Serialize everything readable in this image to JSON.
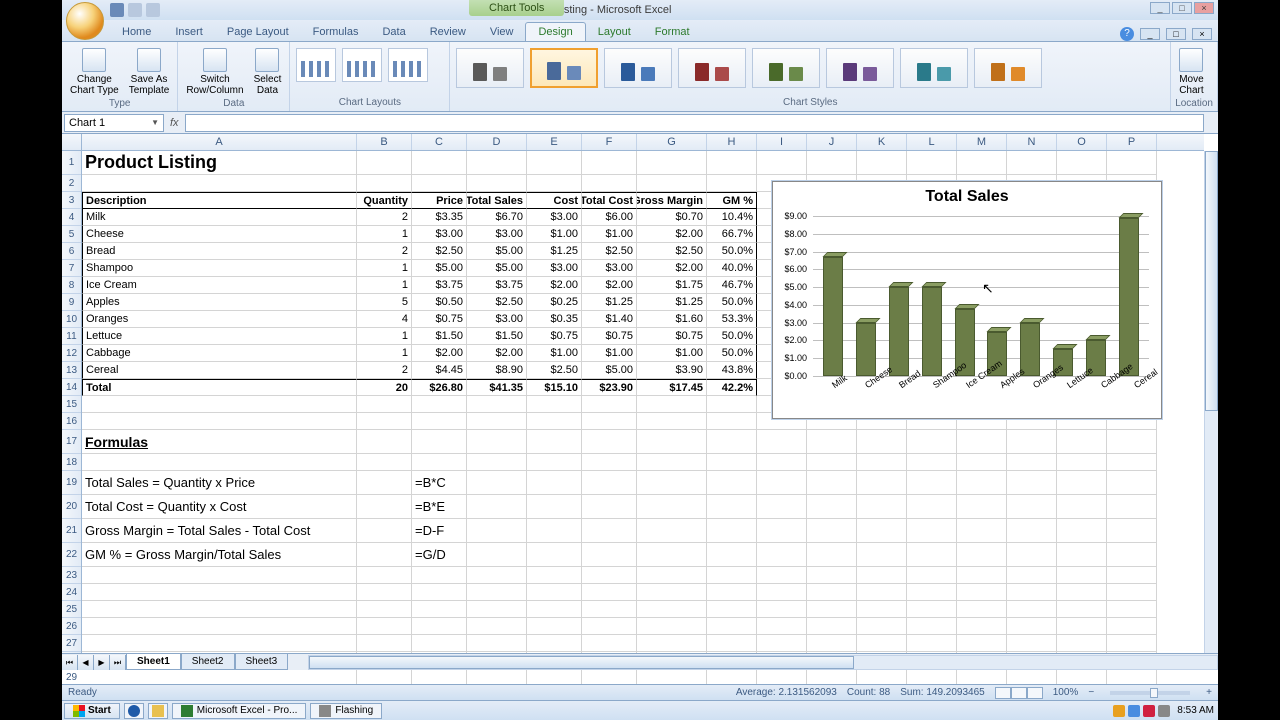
{
  "window": {
    "title": "Product Listing - Microsoft Excel",
    "chart_tools_label": "Chart Tools"
  },
  "win_controls": {
    "min": "_",
    "max": "□",
    "close": "×"
  },
  "tabs": {
    "home": "Home",
    "insert": "Insert",
    "page_layout": "Page Layout",
    "formulas": "Formulas",
    "data": "Data",
    "review": "Review",
    "view": "View",
    "design": "Design",
    "layout": "Layout",
    "format": "Format"
  },
  "ribbon": {
    "type_group": "Type",
    "change_chart_type": "Change\nChart Type",
    "save_as_template": "Save As\nTemplate",
    "data_group": "Data",
    "switch_row_col": "Switch\nRow/Column",
    "select_data": "Select\nData",
    "chart_layouts": "Chart Layouts",
    "chart_styles": "Chart Styles",
    "location_group": "Location",
    "move_chart": "Move\nChart",
    "style_colors": [
      [
        "#595959",
        "#7f7f7f"
      ],
      [
        "#4a6a9a",
        "#6a8aba"
      ],
      [
        "#2a5a9a",
        "#4a7aba"
      ],
      [
        "#8a2a2a",
        "#aa4a4a"
      ],
      [
        "#4a6a2a",
        "#6a8a4a"
      ],
      [
        "#5a3a7a",
        "#7a5a9a"
      ],
      [
        "#2a7a8a",
        "#4a9aaa"
      ],
      [
        "#c0701a",
        "#e08a2a"
      ]
    ]
  },
  "name_box": "Chart 1",
  "columns": [
    "A",
    "B",
    "C",
    "D",
    "E",
    "F",
    "G",
    "H",
    "I",
    "J",
    "K",
    "L",
    "M",
    "N",
    "O",
    "P"
  ],
  "sheet": {
    "title": "Product Listing",
    "headers": [
      "Description",
      "Quantity",
      "Price",
      "Total Sales",
      "Cost",
      "Total Cost",
      "Gross Margin",
      "GM %"
    ],
    "rows": [
      {
        "desc": "Milk",
        "qty": "2",
        "price": "$3.35",
        "ts": "$6.70",
        "cost": "$3.00",
        "tc": "$6.00",
        "gm": "$0.70",
        "gmp": "10.4%"
      },
      {
        "desc": "Cheese",
        "qty": "1",
        "price": "$3.00",
        "ts": "$3.00",
        "cost": "$1.00",
        "tc": "$1.00",
        "gm": "$2.00",
        "gmp": "66.7%"
      },
      {
        "desc": "Bread",
        "qty": "2",
        "price": "$2.50",
        "ts": "$5.00",
        "cost": "$1.25",
        "tc": "$2.50",
        "gm": "$2.50",
        "gmp": "50.0%"
      },
      {
        "desc": "Shampoo",
        "qty": "1",
        "price": "$5.00",
        "ts": "$5.00",
        "cost": "$3.00",
        "tc": "$3.00",
        "gm": "$2.00",
        "gmp": "40.0%"
      },
      {
        "desc": "Ice Cream",
        "qty": "1",
        "price": "$3.75",
        "ts": "$3.75",
        "cost": "$2.00",
        "tc": "$2.00",
        "gm": "$1.75",
        "gmp": "46.7%"
      },
      {
        "desc": "Apples",
        "qty": "5",
        "price": "$0.50",
        "ts": "$2.50",
        "cost": "$0.25",
        "tc": "$1.25",
        "gm": "$1.25",
        "gmp": "50.0%"
      },
      {
        "desc": "Oranges",
        "qty": "4",
        "price": "$0.75",
        "ts": "$3.00",
        "cost": "$0.35",
        "tc": "$1.40",
        "gm": "$1.60",
        "gmp": "53.3%"
      },
      {
        "desc": "Lettuce",
        "qty": "1",
        "price": "$1.50",
        "ts": "$1.50",
        "cost": "$0.75",
        "tc": "$0.75",
        "gm": "$0.75",
        "gmp": "50.0%"
      },
      {
        "desc": "Cabbage",
        "qty": "1",
        "price": "$2.00",
        "ts": "$2.00",
        "cost": "$1.00",
        "tc": "$1.00",
        "gm": "$1.00",
        "gmp": "50.0%"
      },
      {
        "desc": "Cereal",
        "qty": "2",
        "price": "$4.45",
        "ts": "$8.90",
        "cost": "$2.50",
        "tc": "$5.00",
        "gm": "$3.90",
        "gmp": "43.8%"
      }
    ],
    "total": {
      "desc": "Total",
      "qty": "20",
      "price": "$26.80",
      "ts": "$41.35",
      "cost": "$15.10",
      "tc": "$23.90",
      "gm": "$17.45",
      "gmp": "42.2%"
    },
    "formulas_title": "Formulas",
    "formulas": [
      {
        "label": "Total Sales = Quantity x Price",
        "expr": "=B*C"
      },
      {
        "label": "Total Cost = Quantity x Cost",
        "expr": "=B*E"
      },
      {
        "label": "Gross Margin = Total Sales - Total Cost",
        "expr": "=D-F"
      },
      {
        "label": "GM % = Gross Margin/Total Sales",
        "expr": "=G/D"
      }
    ]
  },
  "chart": {
    "type": "bar",
    "title": "Total Sales",
    "title_fontsize": 16,
    "categories": [
      "Milk",
      "Cheese",
      "Bread",
      "Shampoo",
      "Ice Cream",
      "Apples",
      "Oranges",
      "Lettuce",
      "Cabbage",
      "Cereal"
    ],
    "values": [
      6.7,
      3.0,
      5.0,
      5.0,
      3.75,
      2.5,
      3.0,
      1.5,
      2.0,
      8.9
    ],
    "bar_color": "#6b7d47",
    "bar_top_color": "#8a9d62",
    "bar_border": "#4a5a2f",
    "ymin": 0,
    "ymax": 9,
    "ytick_step": 1,
    "ylabels": [
      "$0.00",
      "$1.00",
      "$2.00",
      "$3.00",
      "$4.00",
      "$5.00",
      "$6.00",
      "$7.00",
      "$8.00",
      "$9.00"
    ],
    "grid_color": "#bfbfbf",
    "background_color": "#ffffff",
    "label_fontsize": 9
  },
  "sheet_tabs": {
    "s1": "Sheet1",
    "s2": "Sheet2",
    "s3": "Sheet3"
  },
  "status": {
    "ready": "Ready",
    "average": "Average: 2.131562093",
    "count": "Count: 88",
    "sum": "Sum: 149.2093465",
    "zoom": "100%"
  },
  "taskbar": {
    "start": "Start",
    "excel": "Microsoft Excel - Pro...",
    "flashing": "Flashing",
    "clock": "8:53 AM"
  }
}
